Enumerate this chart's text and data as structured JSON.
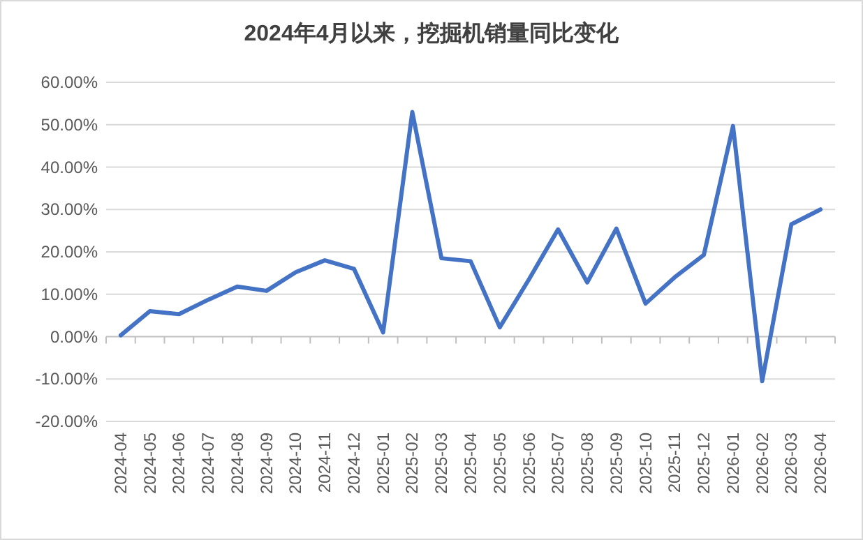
{
  "chart_data": {
    "type": "line",
    "title": "2024年4月以来，挖掘机销量同比变化",
    "categories": [
      "2024-04",
      "2024-05",
      "2024-06",
      "2024-07",
      "2024-08",
      "2024-09",
      "2024-10",
      "2024-11",
      "2024-12",
      "2025-01",
      "2025-02",
      "2025-03",
      "2025-04",
      "2025-05",
      "2025-06",
      "2025-07",
      "2025-08",
      "2025-09",
      "2025-10",
      "2025-11",
      "2025-12",
      "2026-01",
      "2026-02",
      "2026-03",
      "2026-04"
    ],
    "series": [
      {
        "color": "#4472c4",
        "values": [
          0.3,
          6.0,
          5.3,
          8.7,
          11.8,
          10.8,
          15.2,
          18.0,
          16.0,
          1.0,
          53.0,
          18.5,
          17.8,
          2.2,
          13.5,
          25.3,
          12.8,
          25.5,
          7.8,
          14.0,
          19.3,
          49.7,
          -10.5,
          26.5,
          30.0
        ]
      }
    ],
    "ylim": [
      -20,
      60
    ],
    "yticks": [
      {
        "value": -20,
        "label": "-20.00%"
      },
      {
        "value": -10,
        "label": "-10.00%"
      },
      {
        "value": 0,
        "label": "0.00%"
      },
      {
        "value": 10,
        "label": "10.00%"
      },
      {
        "value": 20,
        "label": "20.00%"
      },
      {
        "value": 30,
        "label": "30.00%"
      },
      {
        "value": 40,
        "label": "40.00%"
      },
      {
        "value": 50,
        "label": "50.00%"
      },
      {
        "value": 60,
        "label": "60.00%"
      }
    ],
    "grid": "y",
    "marker": "none",
    "line_style": "solid"
  }
}
